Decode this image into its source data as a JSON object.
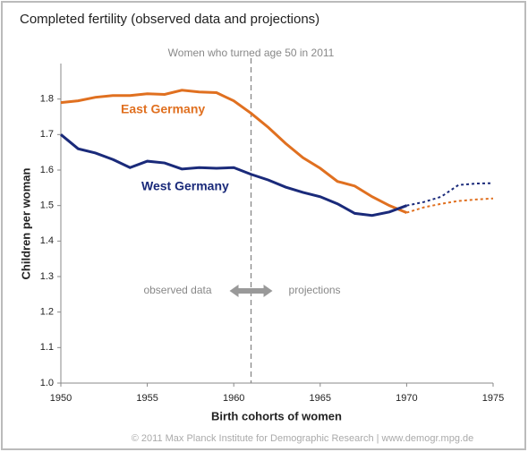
{
  "chart_data": {
    "type": "line",
    "title": "Completed fertility (observed data and projections)",
    "x_label": "Birth cohorts of women",
    "y_label": "Children per woman",
    "x": [
      1950,
      1951,
      1952,
      1953,
      1954,
      1955,
      1956,
      1957,
      1958,
      1959,
      1960,
      1961,
      1962,
      1963,
      1964,
      1965,
      1966,
      1967,
      1968,
      1969,
      1970,
      1971,
      1972,
      1973,
      1974,
      1975
    ],
    "series": [
      {
        "name": "East Germany",
        "color": "#e07020",
        "values": [
          1.79,
          1.795,
          1.805,
          1.81,
          1.81,
          1.815,
          1.813,
          1.825,
          1.82,
          1.818,
          1.795,
          1.76,
          1.72,
          1.675,
          1.635,
          1.605,
          1.568,
          1.555,
          1.525,
          1.5,
          1.48,
          null,
          null,
          null,
          null,
          null
        ],
        "projection": [
          null,
          null,
          null,
          null,
          null,
          null,
          null,
          null,
          null,
          null,
          null,
          null,
          null,
          null,
          null,
          null,
          null,
          null,
          null,
          null,
          1.48,
          1.495,
          1.505,
          1.513,
          1.517,
          1.52
        ]
      },
      {
        "name": "West Germany",
        "color": "#1a2a7a",
        "values": [
          1.7,
          1.66,
          1.648,
          1.63,
          1.607,
          1.625,
          1.62,
          1.603,
          1.607,
          1.605,
          1.607,
          1.588,
          1.572,
          1.552,
          1.537,
          1.525,
          1.505,
          1.478,
          1.472,
          1.482,
          1.5,
          null,
          null,
          null,
          null,
          null
        ],
        "projection": [
          null,
          null,
          null,
          null,
          null,
          null,
          null,
          null,
          null,
          null,
          null,
          null,
          null,
          null,
          null,
          null,
          null,
          null,
          null,
          null,
          1.5,
          1.51,
          1.525,
          1.558,
          1.562,
          1.563
        ]
      }
    ],
    "xlim": [
      1950,
      1975
    ],
    "xticks": [
      1950,
      1955,
      1960,
      1965,
      1970,
      1975
    ],
    "ylim": [
      1.0,
      1.9
    ],
    "yticks": [
      {
        "value": 1.0,
        "label": "1.0"
      },
      1.1,
      1.2,
      1.3,
      1.4,
      1.5,
      1.6,
      1.7,
      1.8
    ],
    "marker_line": {
      "x": 1961,
      "label": "Women who turned age 50 in 2011"
    },
    "observed_label": "observed data",
    "projection_label": "projections",
    "footer": "© 2011 Max Planck Institute for Demographic Research  |  www.demogr.mpg.de"
  }
}
